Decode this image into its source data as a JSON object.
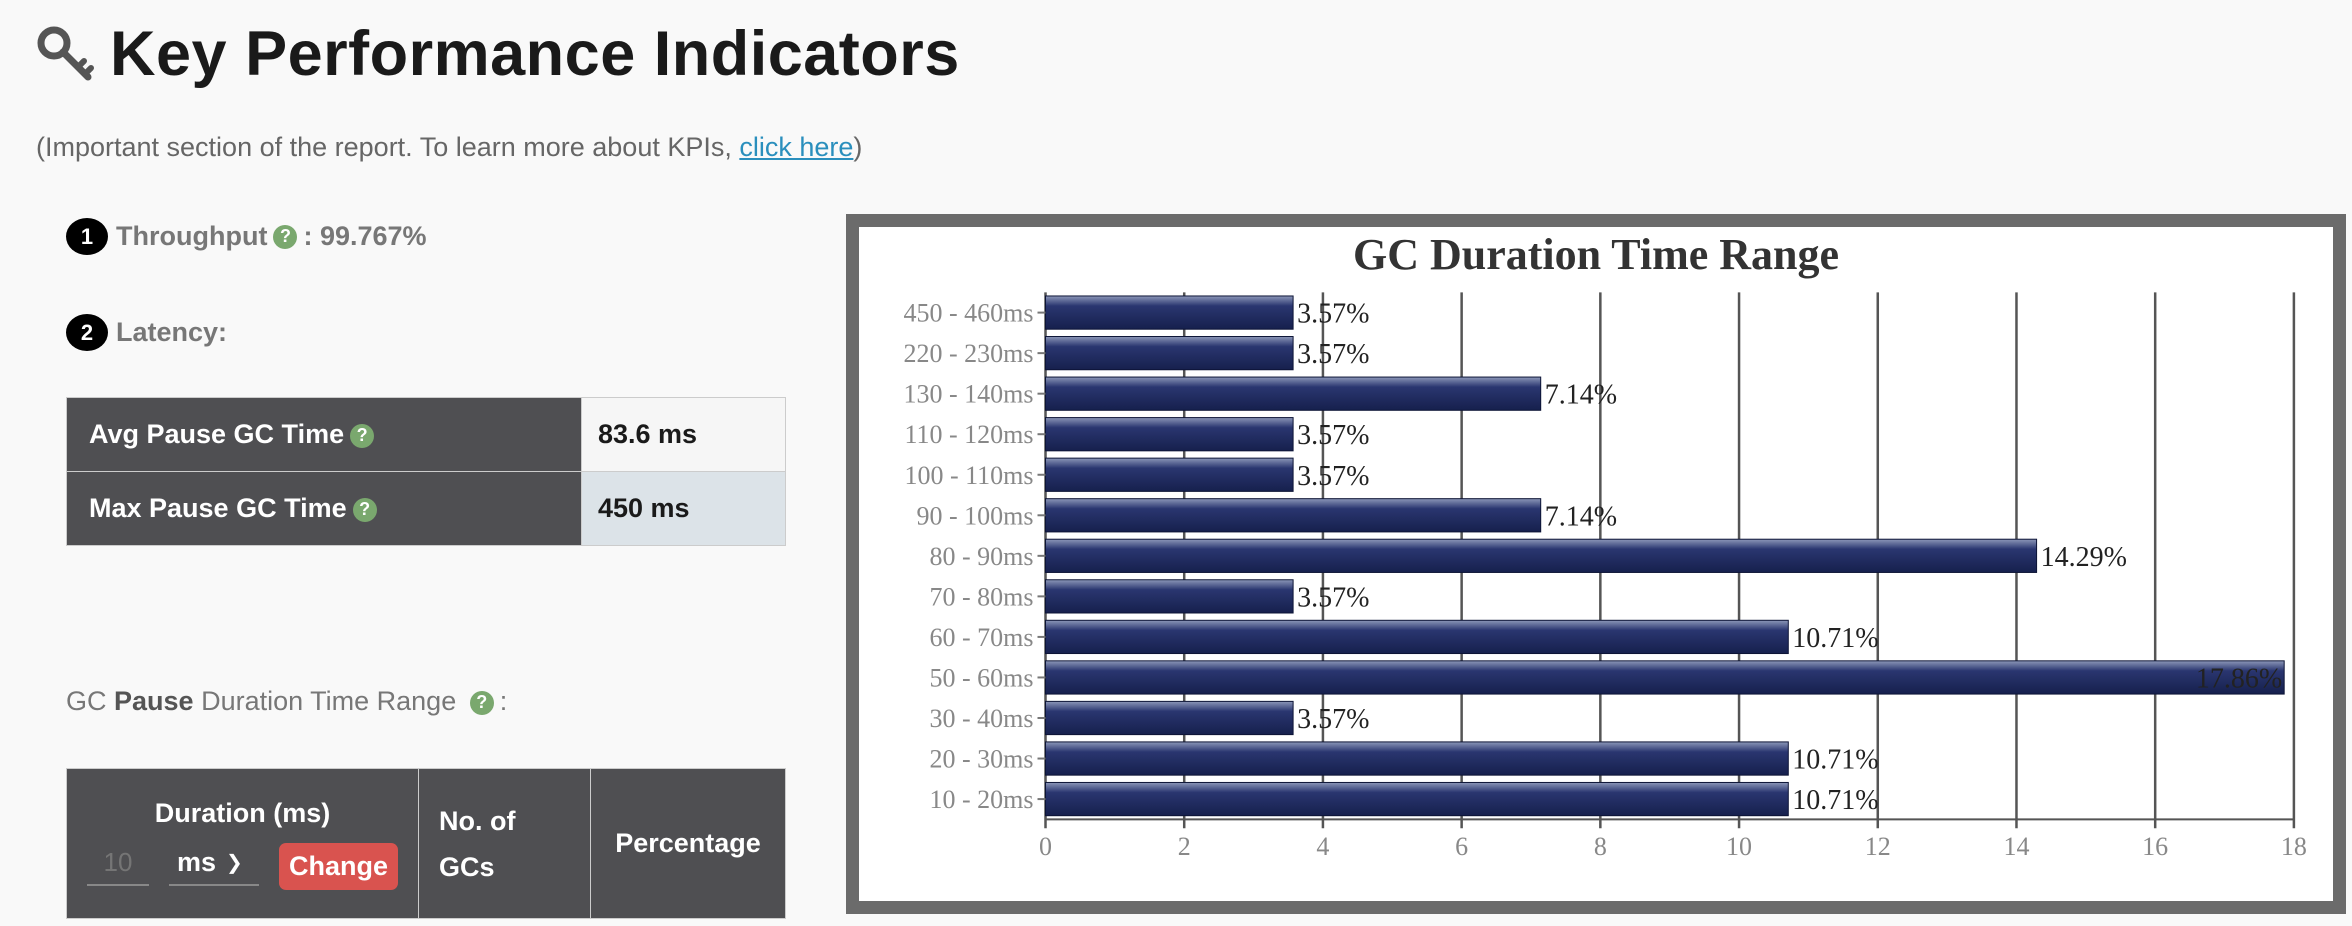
{
  "header": {
    "title": "Key Performance Indicators",
    "icon": "key-icon"
  },
  "subtitle": {
    "prefix": "(Important section of the report. To learn more about KPIs, ",
    "link": "click here",
    "suffix": ")"
  },
  "kpis": {
    "throughput": {
      "num": "1",
      "label": "Throughput",
      "value": ": 99.767%"
    },
    "latency": {
      "num": "2",
      "label": "Latency:"
    }
  },
  "latency_table": [
    {
      "label": "Avg Pause GC Time",
      "value": "83.6 ms"
    },
    {
      "label": "Max Pause GC Time",
      "value": "450 ms"
    }
  ],
  "range_caption": {
    "pre": "GC ",
    "bold": "Pause",
    "post": " Duration Time Range",
    "tail": ":"
  },
  "range_table": {
    "duration_header": "Duration (ms)",
    "duration_placeholder": "10",
    "unit": "ms",
    "change_label": "Change",
    "gcs_header_1": "No. of",
    "gcs_header_2": "GCs",
    "percentage_header": "Percentage"
  },
  "chart_data": {
    "type": "bar",
    "orientation": "horizontal",
    "title": "GC Duration Time Range",
    "categories": [
      "450 - 460ms",
      "220 - 230ms",
      "130 - 140ms",
      "110 - 120ms",
      "100 - 110ms",
      "90 - 100ms",
      "80 - 90ms",
      "70 - 80ms",
      "60 - 70ms",
      "50 - 60ms",
      "30 - 40ms",
      "20 - 30ms",
      "10 - 20ms"
    ],
    "values": [
      3.57,
      3.57,
      7.14,
      3.57,
      3.57,
      7.14,
      14.29,
      3.57,
      10.71,
      17.86,
      3.57,
      10.71,
      10.71
    ],
    "labels": [
      "3.57%",
      "3.57%",
      "7.14%",
      "3.57%",
      "3.57%",
      "7.14%",
      "14.29%",
      "3.57%",
      "10.71%",
      "17.86%",
      "3.57%",
      "10.71%",
      "10.71%"
    ],
    "xlim": [
      0,
      18
    ],
    "xticks": [
      "0",
      "2",
      "4",
      "6",
      "8",
      "10",
      "12",
      "14",
      "16",
      "18"
    ],
    "grid": true,
    "bar_color": "#1e2a5a"
  }
}
